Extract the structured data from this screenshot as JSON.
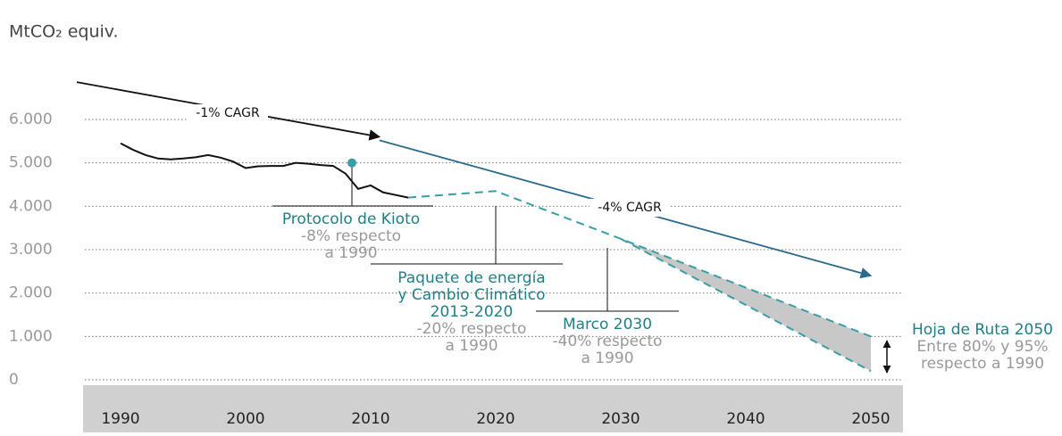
{
  "chart_data": {
    "type": "line",
    "ylabel": "MtCO₂ equiv.",
    "xlim": [
      1986.5,
      2052.5
    ],
    "ylim": [
      0,
      6000
    ],
    "xticks": [
      1990,
      2000,
      2010,
      2020,
      2030,
      2040,
      2050
    ],
    "yticks": [
      {
        "value": 0,
        "label": "0"
      },
      {
        "value": 1000,
        "label": "1.000"
      },
      {
        "value": 2000,
        "label": "2.000"
      },
      {
        "value": 3000,
        "label": "3.000"
      },
      {
        "value": 4000,
        "label": "4.000"
      },
      {
        "value": 5000,
        "label": "5.000"
      },
      {
        "value": 6000,
        "label": "6.000"
      }
    ],
    "grid": true,
    "series": [
      {
        "color": "#111111",
        "style": "solid",
        "x": [
          1990,
          1991,
          1992,
          1993,
          1994,
          1995,
          1996,
          1997,
          1998,
          1999,
          2000,
          2001,
          2002,
          2003,
          2004,
          2005,
          2006,
          2007,
          2008,
          2009,
          2010,
          2011,
          2012,
          2013
        ],
        "values": [
          5450,
          5300,
          5180,
          5100,
          5080,
          5100,
          5130,
          5180,
          5120,
          5030,
          4880,
          4920,
          4930,
          4930,
          5000,
          4980,
          4950,
          4930,
          4750,
          4400,
          4480,
          4320,
          4260,
          4200
        ]
      },
      {
        "color": "#3a9ea5",
        "style": "dashed",
        "x": [
          2013,
          2020,
          2030,
          2050
        ],
        "values": [
          4200,
          4350,
          3250,
          1000
        ]
      },
      {
        "color": "#3a9ea5",
        "style": "dashed",
        "x": [
          2030,
          2050
        ],
        "values": [
          3250,
          200
        ]
      },
      {
        "color": "#111111",
        "style": "arrow",
        "label": "-1% CAGR",
        "x": [
          1986.5,
          2010.7
        ],
        "values": [
          6860,
          5600
        ]
      },
      {
        "color": "#2a6a8f",
        "style": "arrow",
        "label": "-4% CAGR",
        "x": [
          2010.7,
          2050
        ],
        "values": [
          5520,
          2400
        ]
      }
    ],
    "target": {
      "color": "#3a9ea5",
      "x": 2008.5,
      "value": 5000
    },
    "annotations": [
      {
        "title": [
          "Protocolo de Kioto"
        ],
        "text": [
          "-8% respecto",
          "a 1990"
        ]
      },
      {
        "title": [
          "Paquete de energía",
          "y Cambio Climático",
          "2013-2020"
        ],
        "text": [
          "-20% respecto",
          "a 1990"
        ]
      },
      {
        "title": [
          "Marco 2030"
        ],
        "text": [
          "-40% respecto",
          "a 1990"
        ]
      },
      {
        "title": [
          "Hoja de Ruta 2050"
        ],
        "text": [
          "Entre 80% y 95%",
          "respecto a 1990"
        ]
      }
    ]
  }
}
